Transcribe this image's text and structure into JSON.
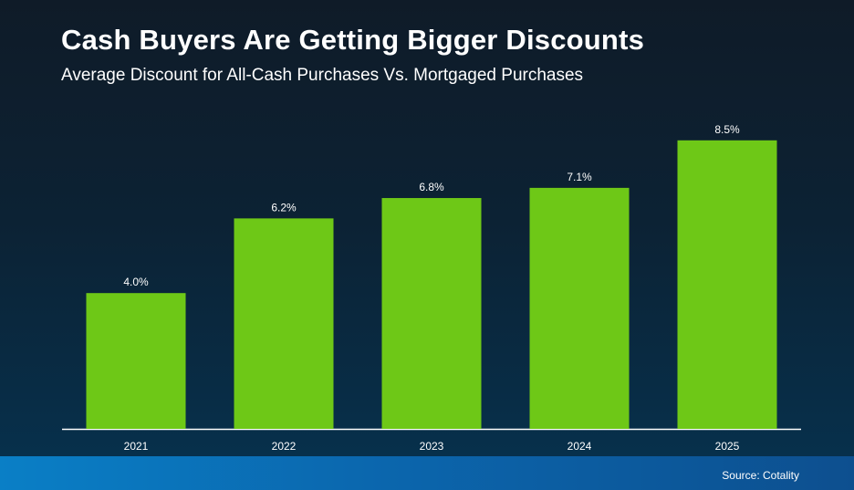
{
  "header": {
    "title": "Cash Buyers Are Getting Bigger Discounts",
    "subtitle": "Average Discount for All-Cash Purchases Vs. Mortgaged Purchases"
  },
  "footer": {
    "source": "Source: Cotality"
  },
  "colors": {
    "bar": "#6ec817",
    "axis": "#ffffff",
    "label": "#ffffff"
  },
  "chart_data": {
    "type": "bar",
    "title": "Cash Buyers Are Getting Bigger Discounts",
    "subtitle": "Average Discount for All-Cash Purchases Vs. Mortgaged Purchases",
    "categories": [
      "2021",
      "2022",
      "2023",
      "2024",
      "2025"
    ],
    "values": [
      4.0,
      6.2,
      6.8,
      7.1,
      8.5
    ],
    "data_labels": [
      "4.0%",
      "6.2%",
      "6.8%",
      "7.1%",
      "8.5%"
    ],
    "xlabel": "",
    "ylabel": "",
    "ylim": [
      0,
      10
    ],
    "grid": false,
    "legend": "none"
  }
}
